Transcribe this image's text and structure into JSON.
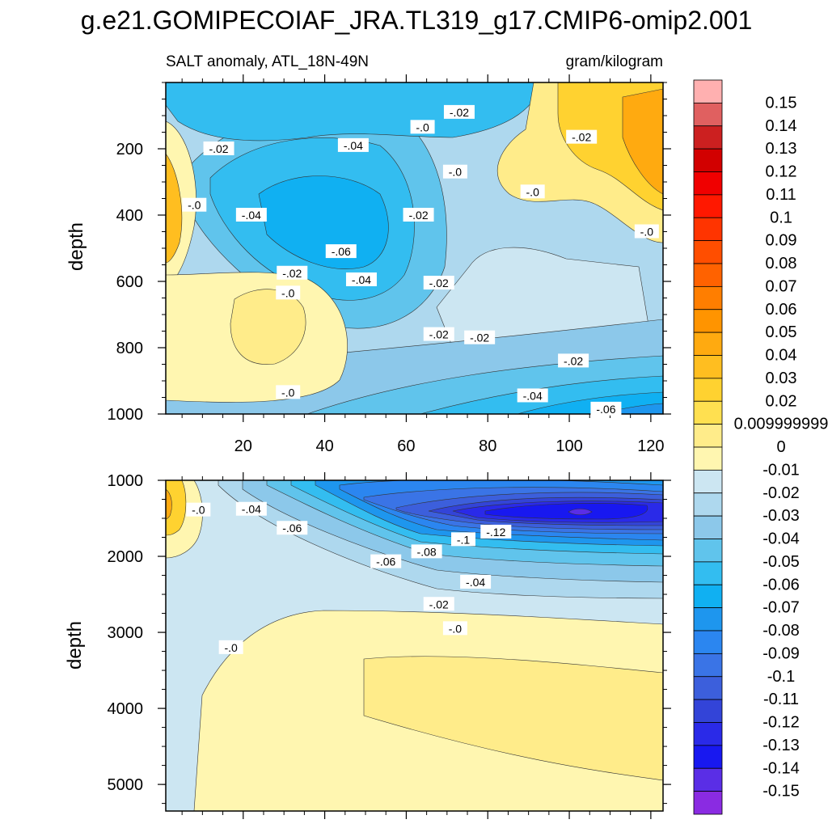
{
  "chart_data": {
    "type": "contour",
    "title": "g.e21.GOMIPECOIAF_JRA.TL319_g17.CMIP6-omip2.001",
    "colors": [
      "#8a2be2",
      "#5a2ee6",
      "#1818f0",
      "#2a2ae8",
      "#3344d8",
      "#3c5fdc",
      "#3a74e6",
      "#2b86f0",
      "#1e96ee",
      "#10b0f2",
      "#33bdf0",
      "#60c4ec",
      "#8cc8ea",
      "#aed8ee",
      "#cce6f2",
      "#fff6b0",
      "#ffec8a",
      "#ffe050",
      "#ffd230",
      "#ffbe20",
      "#ffaa10",
      "#ff9400",
      "#ff7e00",
      "#ff6200",
      "#ff4e00",
      "#ff3400",
      "#ff1800",
      "#f00000",
      "#d20000",
      "#cc2020",
      "#e06060",
      "#ffb0b0"
    ],
    "colorbar": {
      "levels": [
        "0.15",
        "0.14",
        "0.13",
        "0.12",
        "0.11",
        "0.1",
        "0.09",
        "0.08",
        "0.07",
        "0.06",
        "0.05",
        "0.04",
        "0.03",
        "0.02",
        "0.009999999",
        "0",
        "-0.01",
        "-0.02",
        "-0.03",
        "-0.04",
        "-0.05",
        "-0.06",
        "-0.07",
        "-0.08",
        "-0.09",
        "-0.1",
        "-0.11",
        "-0.12",
        "-0.13",
        "-0.14",
        "-0.15"
      ]
    },
    "panels": [
      {
        "name": "upper",
        "subtitle_left": "SALT anomaly, ATL_18N-49N",
        "subtitle_right": "gram/kilogram",
        "ylabel": "depth",
        "ylim": [
          1000,
          0
        ],
        "xlim": [
          1,
          123
        ],
        "yticks": [
          "200",
          "400",
          "600",
          "800",
          "1000"
        ],
        "xticks": [
          "20",
          "40",
          "60",
          "80",
          "100",
          "120"
        ],
        "contour_labels": [
          {
            "text": "-.02",
            "x": 14,
            "y": 200
          },
          {
            "text": "-.04",
            "x": 47,
            "y": 190
          },
          {
            "text": "-.0",
            "x": 64,
            "y": 135
          },
          {
            "text": "-.02",
            "x": 73,
            "y": 90
          },
          {
            "text": "-.02",
            "x": 103,
            "y": 165
          },
          {
            "text": "-.0",
            "x": 72,
            "y": 270
          },
          {
            "text": "-.0",
            "x": 8,
            "y": 370
          },
          {
            "text": "-.04",
            "x": 22,
            "y": 400
          },
          {
            "text": "-.02",
            "x": 63,
            "y": 400
          },
          {
            "text": "-.0",
            "x": 91,
            "y": 330
          },
          {
            "text": "-.0",
            "x": 119,
            "y": 450
          },
          {
            "text": "-.06",
            "x": 44,
            "y": 510
          },
          {
            "text": "-.02",
            "x": 32,
            "y": 575
          },
          {
            "text": "-.04",
            "x": 49,
            "y": 595
          },
          {
            "text": "-.02",
            "x": 68,
            "y": 605
          },
          {
            "text": "-.0",
            "x": 31,
            "y": 635
          },
          {
            "text": "-.02",
            "x": 68,
            "y": 760
          },
          {
            "text": "-.02",
            "x": 78,
            "y": 770
          },
          {
            "text": "-.02",
            "x": 101,
            "y": 840
          },
          {
            "text": "-.0",
            "x": 31,
            "y": 935
          },
          {
            "text": "-.04",
            "x": 91,
            "y": 945
          },
          {
            "text": "-.06",
            "x": 109,
            "y": 985
          }
        ]
      },
      {
        "name": "lower",
        "ylabel": "depth",
        "ylim": [
          5350,
          1000
        ],
        "xlim": [
          1,
          123
        ],
        "yticks": [
          "1000",
          "2000",
          "3000",
          "4000",
          "5000"
        ],
        "contour_labels": [
          {
            "text": "-.0",
            "x": 9,
            "y": 1390
          },
          {
            "text": "-.04",
            "x": 22,
            "y": 1380
          },
          {
            "text": "-.06",
            "x": 32,
            "y": 1630
          },
          {
            "text": "-.12",
            "x": 82,
            "y": 1680
          },
          {
            "text": "-.1",
            "x": 74,
            "y": 1780
          },
          {
            "text": "-.08",
            "x": 65,
            "y": 1940
          },
          {
            "text": "-.06",
            "x": 55,
            "y": 2070
          },
          {
            "text": "-.04",
            "x": 77,
            "y": 2340
          },
          {
            "text": "-.02",
            "x": 68,
            "y": 2630
          },
          {
            "text": "-.0",
            "x": 72,
            "y": 2950
          },
          {
            "text": "-.0",
            "x": 17,
            "y": 3200
          }
        ]
      }
    ]
  }
}
